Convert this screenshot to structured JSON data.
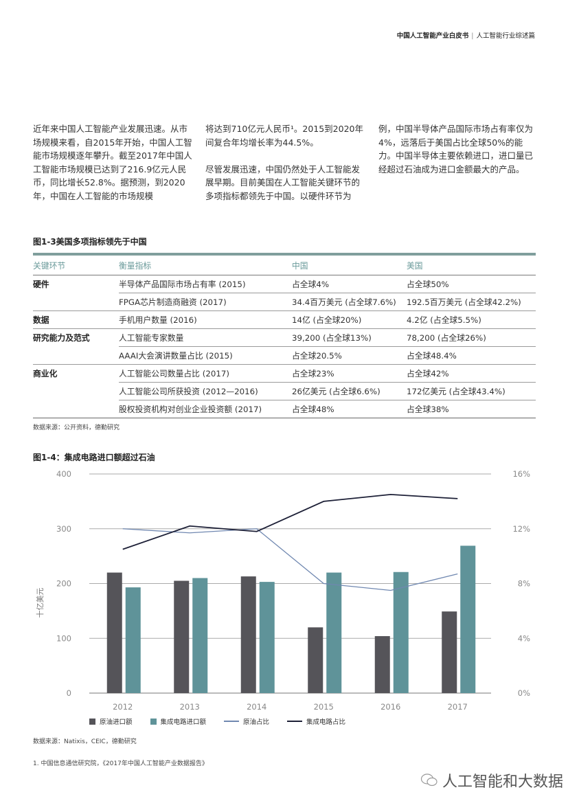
{
  "header": {
    "title": "中国人工智能产业白皮书",
    "separator": "|",
    "subtitle": "人工智能行业综述篇"
  },
  "body_text": {
    "col1": "近年来中国人工智能产业发展迅速。从市场规模来看，自2015年开始，中国人工智能市场规模逐年攀升。截至2017年中国人工智能市场规模已达到了216.9亿元人民币，同比增长52.8%。据预测，到2020年，中国在人工智能的市场规模",
    "col2a": "将达到710亿元人民币¹。2015到2020年间复合年均增长率为44.5%。",
    "col2b": "尽管发展迅速，中国仍然处于人工智能发展早期。目前美国在人工智能关键环节的多项指标都领先于中国。以硬件环节为",
    "col3": "例，中国半导体产品国际市场占有率仅为4%，远落后于美国占比全球50%的能力。中国半导体主要依赖进口，进口量已经超过石油成为进口金额最大的产品。"
  },
  "table": {
    "title": "图1-3美国多项指标领先于中国",
    "headers": [
      "关键环节",
      "衡量指标",
      "中国",
      "美国"
    ],
    "rows": [
      {
        "key": "硬件",
        "metric": "半导体产品国际市场占有率 (2015)",
        "china": "占全球4%",
        "usa": "占全球50%"
      },
      {
        "key": "",
        "metric": "FPGA芯片制造商融资 (2017)",
        "china": "34.4百万美元 (占全球7.6%)",
        "usa": "192.5百万美元 (占全球42.2%)"
      },
      {
        "key": "数据",
        "metric": "手机用户数量 (2016)",
        "china": "14亿 (占全球20%)",
        "usa": "4.2亿 (占全球5.5%)"
      },
      {
        "key": "研究能力及范式",
        "metric": "人工智能专家数量",
        "china": "39,200 (占全球13%)",
        "usa": "78,200 (占全球26%)"
      },
      {
        "key": "",
        "metric": "AAAI大会演讲数量占比 (2015)",
        "china": "占全球20.5%",
        "usa": "占全球48.4%"
      },
      {
        "key": "商业化",
        "metric": "人工智能公司数量占比 (2017)",
        "china": "占全球23%",
        "usa": "占全球42%"
      },
      {
        "key": "",
        "metric": "人工智能公司所获投资 (2012—2016)",
        "china": "26亿美元 (占全球6.6%)",
        "usa": "172亿美元 (占全球43.4%)"
      },
      {
        "key": "",
        "metric": "股权投资机构对创业企业投资额 (2017)",
        "china": "占全球48%",
        "usa": "占全球38%"
      }
    ],
    "source": "数据来源：公开资料，德勤研究"
  },
  "chart_data": {
    "type": "bar",
    "title": "图1-4：集成电路进口额超过石油",
    "categories": [
      "2012",
      "2013",
      "2014",
      "2015",
      "2016",
      "2017"
    ],
    "ylabel": "十亿美元",
    "ylim": [
      0,
      400
    ],
    "yticks": [
      "0",
      "100",
      "200",
      "300",
      "400"
    ],
    "y2lim": [
      0,
      16
    ],
    "y2ticks": [
      "0%",
      "4%",
      "8%",
      "12%",
      "16%"
    ],
    "grid": true,
    "legend_position": "bottom",
    "series": [
      {
        "name": "原油进口额",
        "kind": "bar",
        "axis": "left",
        "color": "#555459",
        "values": [
          220,
          205,
          213,
          120,
          104,
          149
        ]
      },
      {
        "name": "集成电路进口额",
        "kind": "bar",
        "axis": "left",
        "color": "#5f9399",
        "values": [
          193,
          210,
          203,
          220,
          221,
          269
        ]
      },
      {
        "name": "原油占比",
        "kind": "line",
        "axis": "right",
        "color": "#6f87b0",
        "values": [
          12.0,
          11.7,
          12.0,
          8.0,
          7.5,
          8.7
        ]
      },
      {
        "name": "集成电路占比",
        "kind": "line",
        "axis": "right",
        "color": "#1c1f36",
        "values": [
          10.5,
          12.2,
          11.8,
          14.0,
          14.5,
          14.2
        ]
      }
    ],
    "source": "数据来源：Natixis，CEIC，德勤研究"
  },
  "footnote": "1. 中国信息通信研究院，《2017年中国人工智能产业数据报告》",
  "watermark": "人工智能和大数据"
}
